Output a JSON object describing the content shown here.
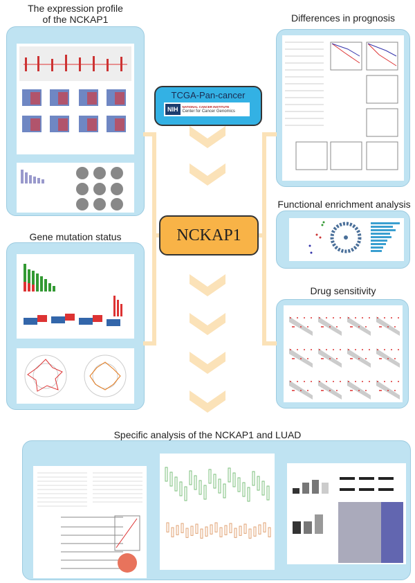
{
  "sections": {
    "expression": {
      "title_line1": "The expression profile",
      "title_line2": "of the NCKAP1"
    },
    "prognosis": {
      "title": "Differences in prognosis"
    },
    "mutation": {
      "title": "Gene mutation status"
    },
    "enrichment": {
      "title": "Functional enrichment analysis"
    },
    "drug": {
      "title": "Drug sensitivity"
    },
    "luad": {
      "title": "Specific analysis of the NCKAP1 and LUAD"
    }
  },
  "center": {
    "label": "NCKAP1"
  },
  "source": {
    "label": "TCGA-Pan-cancer",
    "logo_badge": "NIH",
    "logo_line1": "NATIONAL CANCER INSTITUTE",
    "logo_line2": "Center for Cancer Genomics"
  },
  "colors": {
    "panel": "#bfe3f2",
    "center": "#f8b347",
    "source": "#33b1e4",
    "connector": "#fbe2b8"
  }
}
